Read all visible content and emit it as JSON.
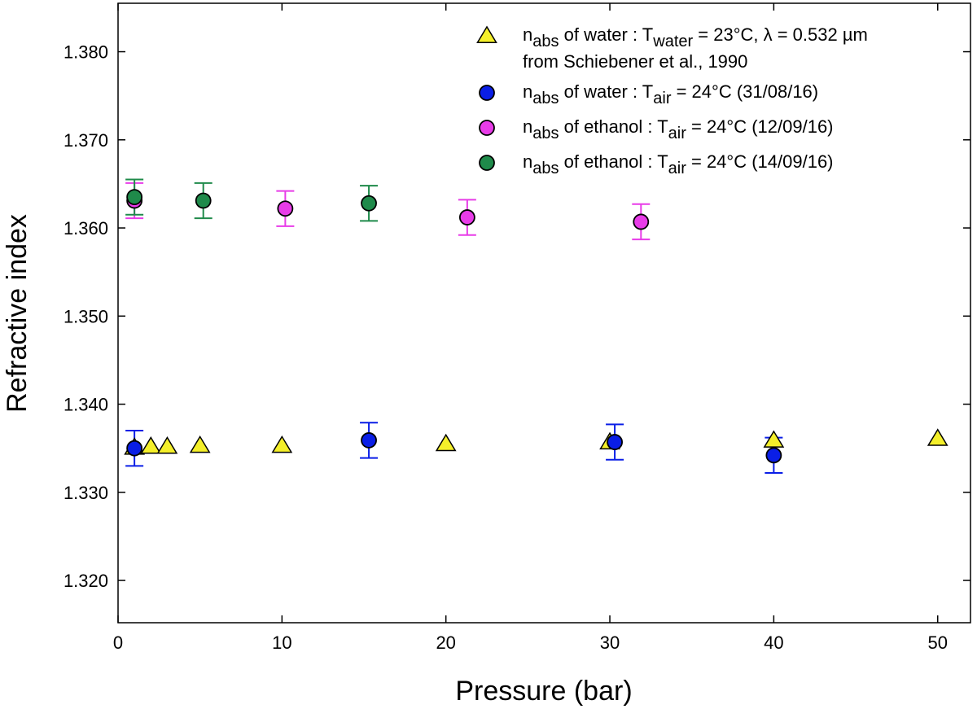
{
  "chart_data": {
    "type": "scatter",
    "title": "",
    "xlabel": "Pressure (bar)",
    "ylabel": "Refractive index",
    "xlim": [
      0,
      52
    ],
    "ylim": [
      1.3152,
      1.3855
    ],
    "xticks": [
      0,
      10,
      20,
      30,
      40,
      50
    ],
    "yticks": [
      1.32,
      1.33,
      1.34,
      1.35,
      1.36,
      1.37,
      1.38
    ],
    "xtick_labels": [
      "0",
      "10",
      "20",
      "30",
      "40",
      "50"
    ],
    "ytick_labels": [
      "1.320",
      "1.330",
      "1.340",
      "1.350",
      "1.360",
      "1.370",
      "1.380"
    ],
    "grid": false,
    "legend_position": "top-right",
    "series": [
      {
        "name": "water_schiebener",
        "marker": "triangle",
        "color": "#f4ef2a",
        "legend": {
          "main": "n",
          "sub": "abs",
          "rest1": " of water : T",
          "sub2": "water",
          "rest2": " = 23°C, λ = 0.532 µm",
          "line2": "from Schiebener et al., 1990"
        },
        "points": [
          {
            "x": 1,
            "y": 1.3351
          },
          {
            "x": 2,
            "y": 1.3352
          },
          {
            "x": 3,
            "y": 1.3352
          },
          {
            "x": 5,
            "y": 1.3353
          },
          {
            "x": 10,
            "y": 1.3353
          },
          {
            "x": 20,
            "y": 1.3355
          },
          {
            "x": 30,
            "y": 1.3357
          },
          {
            "x": 40,
            "y": 1.3359
          },
          {
            "x": 50,
            "y": 1.3361
          }
        ]
      },
      {
        "name": "water_310816",
        "marker": "circle",
        "color": "#0a1ee6",
        "legend": {
          "main": "n",
          "sub": "abs",
          "rest1": " of water : T",
          "sub2": "air",
          "rest2": " = 24°C (31/08/16)",
          "line2": ""
        },
        "points": [
          {
            "x": 1,
            "y": 1.335,
            "err": 0.002
          },
          {
            "x": 15.3,
            "y": 1.3359,
            "err": 0.002
          },
          {
            "x": 30.3,
            "y": 1.3357,
            "err": 0.002
          },
          {
            "x": 40,
            "y": 1.3342,
            "err": 0.002
          }
        ]
      },
      {
        "name": "ethanol_120916",
        "marker": "circle",
        "color": "#e83ce8",
        "legend": {
          "main": "n",
          "sub": "abs",
          "rest1": " of ethanol : T",
          "sub2": "air",
          "rest2": " = 24°C (12/09/16)",
          "line2": ""
        },
        "points": [
          {
            "x": 1,
            "y": 1.3631,
            "err": 0.002
          },
          {
            "x": 10.2,
            "y": 1.3622,
            "err": 0.002
          },
          {
            "x": 21.3,
            "y": 1.3612,
            "err": 0.002
          },
          {
            "x": 31.9,
            "y": 1.3607,
            "err": 0.002
          }
        ]
      },
      {
        "name": "ethanol_140916",
        "marker": "circle",
        "color": "#1f8a4a",
        "legend": {
          "main": "n",
          "sub": "abs",
          "rest1": " of ethanol : T",
          "sub2": "air",
          "rest2": " = 24°C (14/09/16)",
          "line2": ""
        },
        "points": [
          {
            "x": 1,
            "y": 1.3635,
            "err": 0.002
          },
          {
            "x": 5.2,
            "y": 1.3631,
            "err": 0.002
          },
          {
            "x": 15.3,
            "y": 1.3628,
            "err": 0.002
          }
        ]
      }
    ]
  }
}
